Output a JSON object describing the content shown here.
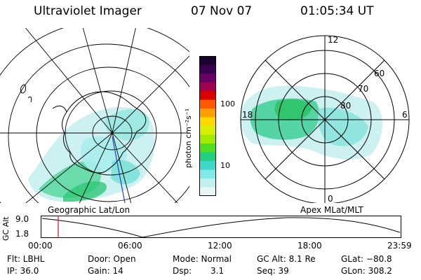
{
  "header": {
    "instrument": "Ultraviolet Imager",
    "date": "07 Nov 07",
    "time": "01:05:34 UT"
  },
  "left_panel": {
    "label": "Geographic Lat/Lon"
  },
  "right_panel": {
    "label": "Apex MLat/MLT",
    "mlt_labels": [
      "12",
      "18",
      "6",
      "0"
    ],
    "lat_labels": [
      "60",
      "70",
      "80"
    ]
  },
  "colorbar": {
    "unit_label": "photon cm⁻²s⁻¹",
    "ticks": [
      "100",
      "10"
    ],
    "colors": [
      "#1a0030",
      "#3a0050",
      "#6a0066",
      "#a00050",
      "#d80000",
      "#ff5a00",
      "#ffa000",
      "#ffd800",
      "#d8f000",
      "#a0ea00",
      "#50dc20",
      "#20d080",
      "#40d8c8",
      "#80e8e8",
      "#c0f0f0",
      "#eaf6f6"
    ]
  },
  "altitude_plot": {
    "axis_label": "GC Alt",
    "y_ticks": [
      "9.0",
      "1.8"
    ],
    "x_ticks": [
      "00:00",
      "06:00",
      "12:00",
      "18:00",
      "23:59"
    ],
    "marker_color": "#e02020"
  },
  "footer": {
    "filter": "Flt: LBHL",
    "ip": "IP: 36.0",
    "door": "Door: Open",
    "gain": "Gain: 14",
    "mode": "Mode: Normal",
    "dsp_label": "Dsp:",
    "dsp_value": "3.1",
    "gc_alt": "GC Alt: 8.1 Re",
    "seq": "Seq: 39",
    "glat": "GLat: −80.8",
    "glon": "GLon: 308.2"
  }
}
